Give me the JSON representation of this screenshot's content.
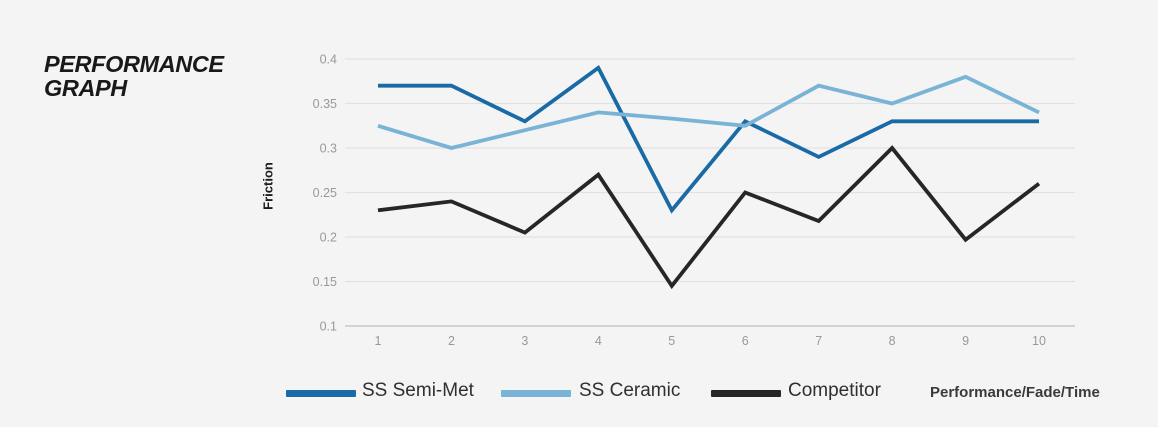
{
  "title": "PERFORMANCE GRAPH",
  "footer": {
    "label": "Performance/Fade/Time"
  },
  "chart_data": {
    "type": "line",
    "title": "PERFORMANCE GRAPH",
    "xlabel": "",
    "ylabel": "Friction",
    "x": [
      1,
      2,
      3,
      4,
      5,
      6,
      7,
      8,
      9,
      10
    ],
    "ylim": [
      0.1,
      0.4
    ],
    "ytick_step": 0.05,
    "ytick_labels": [
      "0.4",
      "0.35",
      "0.3",
      "0.25",
      "0.2",
      "0.15",
      "0.1"
    ],
    "grid": "horizontal",
    "legend_position": "bottom",
    "annotation": "Performance/Fade/Time",
    "series": [
      {
        "name": "SS Semi-Met",
        "color": "#1a6aa5",
        "values": [
          0.37,
          0.37,
          0.33,
          0.39,
          0.23,
          0.33,
          0.29,
          0.33,
          0.33,
          0.33
        ]
      },
      {
        "name": "SS Ceramic",
        "color": "#79b3d6",
        "values": [
          0.325,
          0.3,
          0.32,
          0.34,
          0.333,
          0.325,
          0.37,
          0.35,
          0.38,
          0.34
        ]
      },
      {
        "name": "Competitor",
        "color": "#262626",
        "values": [
          0.23,
          0.24,
          0.205,
          0.27,
          0.145,
          0.25,
          0.218,
          0.3,
          0.197,
          0.26
        ]
      }
    ]
  },
  "style": {
    "background": "#f4f4f4",
    "gridline_color": "#e2e2e2",
    "baseline_color": "#c8c8c8",
    "tick_label_color": "#999999"
  }
}
